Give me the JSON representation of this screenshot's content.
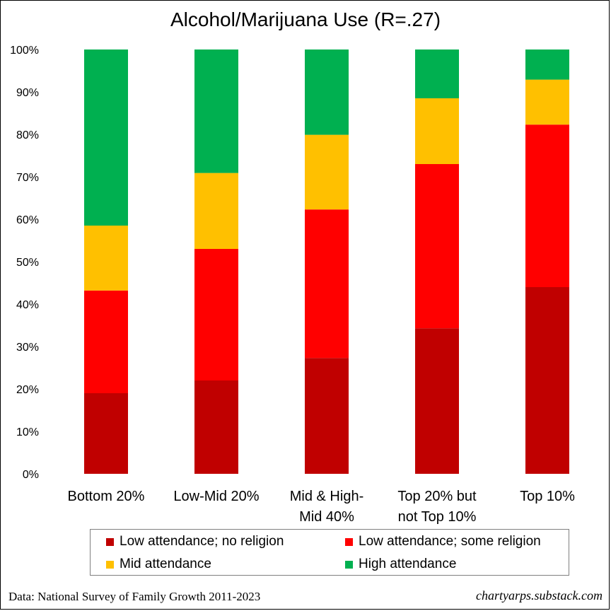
{
  "chart_data": {
    "type": "bar",
    "stacked": true,
    "title": "Alcohol/Marijuana Use (R=.27)",
    "categories": [
      [
        "Bottom 20%"
      ],
      [
        "Low-Mid 20%"
      ],
      [
        "Mid & High-",
        "Mid 40%"
      ],
      [
        "Top 20% but",
        "not Top 10%"
      ],
      [
        "Top 10%"
      ]
    ],
    "series": [
      {
        "name": "Low attendance; no religion",
        "color": "#c00000",
        "values": [
          19,
          22,
          27.3,
          34.3,
          44
        ]
      },
      {
        "name": "Low attendance; some religion",
        "color": "#ff0000",
        "values": [
          24.2,
          31,
          35,
          38.7,
          38.3
        ]
      },
      {
        "name": "Mid attendance",
        "color": "#ffc000",
        "values": [
          15.3,
          17.9,
          17.6,
          15.5,
          10.6
        ]
      },
      {
        "name": "High attendance",
        "color": "#00b050",
        "values": [
          41.5,
          29.1,
          20.1,
          11.5,
          7.1
        ]
      }
    ],
    "y_ticks": [
      "0%",
      "10%",
      "20%",
      "30%",
      "40%",
      "50%",
      "60%",
      "70%",
      "80%",
      "90%",
      "100%"
    ],
    "ylim": [
      0,
      100
    ],
    "xlabel": "",
    "ylabel": "",
    "legend_position": "bottom"
  },
  "footer": {
    "source": "Data: National Survey of Family Growth 2011-2023",
    "site": "chartyarps.substack.com"
  }
}
